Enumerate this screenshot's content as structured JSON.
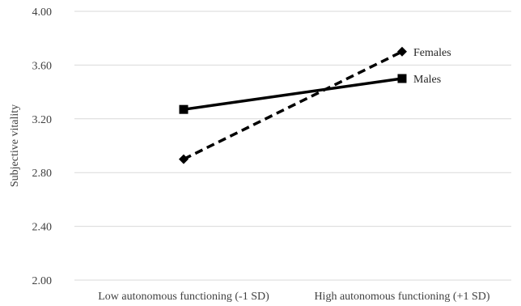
{
  "chart_data": {
    "type": "line",
    "title": "",
    "xlabel": "",
    "ylabel": "Subjective vitality",
    "ylim": [
      2.0,
      4.0
    ],
    "yticks": [
      "2.00",
      "2.40",
      "2.80",
      "3.20",
      "3.60",
      "4.00"
    ],
    "categories": [
      "Low autonomous functioning (-1 SD)",
      "High autonomous functioning (+1 SD)"
    ],
    "grid": true,
    "legend": "inline-right",
    "series": [
      {
        "name": "Females",
        "values": [
          2.9,
          3.7
        ],
        "line_style": "dashed",
        "marker": "diamond",
        "color": "#000000"
      },
      {
        "name": "Males",
        "values": [
          3.27,
          3.5
        ],
        "line_style": "solid",
        "marker": "square",
        "color": "#000000"
      }
    ]
  }
}
